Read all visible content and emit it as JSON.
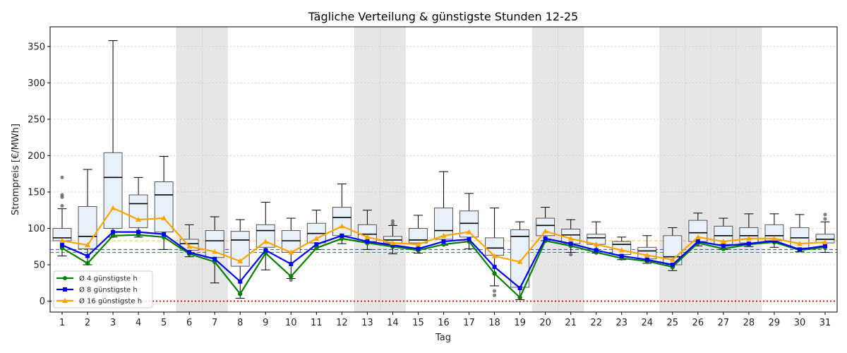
{
  "chart_data": {
    "type": "box",
    "title": "Tägliche Verteilung & günstigste Stunden 12-25",
    "xlabel": "Tag",
    "ylabel": "Strompreis [€/MWh]",
    "ylim": [
      -15,
      377
    ],
    "yticks": [
      0,
      50,
      100,
      150,
      200,
      250,
      300,
      350
    ],
    "grid": "horizontal dotted",
    "legend_position": "bottom-left",
    "colors": {
      "box_fill": "#e8f1f9",
      "box_edge": "#555555",
      "median": "#000000",
      "weekend_shade": "#e6e6e6",
      "zero_line": "#ff0000",
      "s4": "#008000",
      "s8": "#0000ff",
      "s16": "#ffa500"
    },
    "weekend_days": [
      6,
      7,
      13,
      14,
      20,
      21,
      25,
      26,
      27,
      28
    ],
    "days": [
      1,
      2,
      3,
      4,
      5,
      6,
      7,
      8,
      9,
      10,
      11,
      12,
      13,
      14,
      15,
      16,
      17,
      18,
      19,
      20,
      21,
      22,
      23,
      24,
      25,
      26,
      27,
      28,
      29,
      30,
      31
    ],
    "boxes": [
      {
        "day": 1,
        "whislo": 62,
        "q1": 83,
        "med": 87,
        "q3": 100,
        "whishi": 127,
        "fliers": [
          131,
          143,
          146,
          170
        ]
      },
      {
        "day": 2,
        "whislo": 50,
        "q1": 72,
        "med": 89,
        "q3": 130,
        "whishi": 181,
        "fliers": []
      },
      {
        "day": 3,
        "whislo": 88,
        "q1": 100,
        "med": 170,
        "q3": 204,
        "whishi": 358,
        "fliers": []
      },
      {
        "day": 4,
        "whislo": 88,
        "q1": 101,
        "med": 134,
        "q3": 146,
        "whishi": 170,
        "fliers": []
      },
      {
        "day": 5,
        "whislo": 71,
        "q1": 95,
        "med": 146,
        "q3": 164,
        "whishi": 199,
        "fliers": []
      },
      {
        "day": 6,
        "whislo": 61,
        "q1": 70,
        "med": 79,
        "q3": 85,
        "whishi": 105,
        "fliers": []
      },
      {
        "day": 7,
        "whislo": 25,
        "q1": 60,
        "med": 83,
        "q3": 97,
        "whishi": 116,
        "fliers": []
      },
      {
        "day": 8,
        "whislo": 4,
        "q1": 48,
        "med": 84,
        "q3": 96,
        "whishi": 112,
        "fliers": []
      },
      {
        "day": 9,
        "whislo": 43,
        "q1": 74,
        "med": 97,
        "q3": 105,
        "whishi": 136,
        "fliers": []
      },
      {
        "day": 10,
        "whislo": 31,
        "q1": 67,
        "med": 83,
        "q3": 97,
        "whishi": 114,
        "fliers": [
          29
        ]
      },
      {
        "day": 11,
        "whislo": 71,
        "q1": 80,
        "med": 93,
        "q3": 107,
        "whishi": 125,
        "fliers": []
      },
      {
        "day": 12,
        "whislo": 79,
        "q1": 90,
        "med": 115,
        "q3": 129,
        "whishi": 161,
        "fliers": []
      },
      {
        "day": 13,
        "whislo": 71,
        "q1": 82,
        "med": 92,
        "q3": 105,
        "whishi": 125,
        "fliers": []
      },
      {
        "day": 14,
        "whislo": 65,
        "q1": 80,
        "med": 84,
        "q3": 89,
        "whishi": 104,
        "fliers": [
          106,
          110
        ]
      },
      {
        "day": 15,
        "whislo": 66,
        "q1": 80,
        "med": 84,
        "q3": 100,
        "whishi": 118,
        "fliers": []
      },
      {
        "day": 16,
        "whislo": 77,
        "q1": 85,
        "med": 97,
        "q3": 128,
        "whishi": 178,
        "fliers": []
      },
      {
        "day": 17,
        "whislo": 72,
        "q1": 88,
        "med": 107,
        "q3": 124,
        "whishi": 148,
        "fliers": []
      },
      {
        "day": 18,
        "whislo": 21,
        "q1": 63,
        "med": 73,
        "q3": 87,
        "whishi": 128,
        "fliers": [
          8,
          14
        ]
      },
      {
        "day": 19,
        "whislo": 2,
        "q1": 19,
        "med": 89,
        "q3": 98,
        "whishi": 109,
        "fliers": []
      },
      {
        "day": 20,
        "whislo": 83,
        "q1": 90,
        "med": 104,
        "q3": 114,
        "whishi": 129,
        "fliers": []
      },
      {
        "day": 21,
        "whislo": 67,
        "q1": 79,
        "med": 91,
        "q3": 99,
        "whishi": 112,
        "fliers": [
          64
        ]
      },
      {
        "day": 22,
        "whislo": 66,
        "q1": 78,
        "med": 87,
        "q3": 92,
        "whishi": 109,
        "fliers": []
      },
      {
        "day": 23,
        "whislo": 57,
        "q1": 64,
        "med": 78,
        "q3": 82,
        "whishi": 88,
        "fliers": []
      },
      {
        "day": 24,
        "whislo": 52,
        "q1": 58,
        "med": 69,
        "q3": 74,
        "whishi": 90,
        "fliers": []
      },
      {
        "day": 25,
        "whislo": 42,
        "q1": 50,
        "med": 61,
        "q3": 90,
        "whishi": 101,
        "fliers": []
      },
      {
        "day": 26,
        "whislo": 76,
        "q1": 82,
        "med": 94,
        "q3": 111,
        "whishi": 121,
        "fliers": []
      },
      {
        "day": 27,
        "whislo": 71,
        "q1": 78,
        "med": 90,
        "q3": 103,
        "whishi": 114,
        "fliers": []
      },
      {
        "day": 28,
        "whislo": 75,
        "q1": 80,
        "med": 90,
        "q3": 101,
        "whishi": 120,
        "fliers": []
      },
      {
        "day": 29,
        "whislo": 74,
        "q1": 83,
        "med": 90,
        "q3": 105,
        "whishi": 120,
        "fliers": []
      },
      {
        "day": 30,
        "whislo": 68,
        "q1": 73,
        "med": 87,
        "q3": 101,
        "whishi": 119,
        "fliers": []
      },
      {
        "day": 31,
        "whislo": 67,
        "q1": 80,
        "med": 85,
        "q3": 92,
        "whishi": 109,
        "fliers": [
          113,
          119
        ]
      }
    ],
    "series": [
      {
        "name": "Ø 4 günstigste h",
        "key": "s4",
        "marker": "circle",
        "values": [
          73,
          52,
          90,
          91,
          88,
          65,
          54,
          10,
          66,
          34,
          73,
          86,
          80,
          75,
          70,
          78,
          82,
          38,
          5,
          83,
          76,
          67,
          59,
          55,
          47,
          80,
          72,
          78,
          81,
          70,
          74
        ]
      },
      {
        "name": "Ø 8 günstigste h",
        "key": "s8",
        "marker": "square",
        "values": [
          77,
          62,
          95,
          95,
          92,
          67,
          58,
          27,
          70,
          51,
          78,
          90,
          82,
          77,
          72,
          82,
          85,
          47,
          18,
          86,
          79,
          70,
          62,
          57,
          50,
          82,
          76,
          79,
          83,
          71,
          76
        ]
      },
      {
        "name": "Ø 16 günstigste h",
        "key": "s16",
        "marker": "triangle",
        "values": [
          83,
          77,
          128,
          112,
          114,
          75,
          68,
          55,
          82,
          67,
          86,
          103,
          88,
          80,
          78,
          90,
          95,
          62,
          54,
          96,
          86,
          78,
          70,
          63,
          57,
          88,
          82,
          86,
          86,
          79,
          81
        ]
      }
    ],
    "reference_lines": [
      {
        "key": "s4",
        "value": 67
      },
      {
        "key": "s8",
        "value": 71
      },
      {
        "key": "s16",
        "value": 83
      },
      {
        "key": "zero_line",
        "value": 0
      }
    ]
  }
}
